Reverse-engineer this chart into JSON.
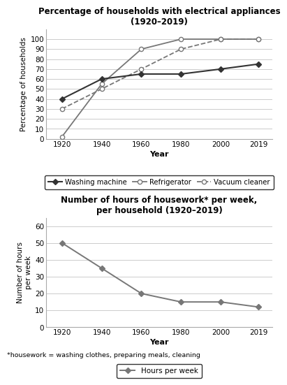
{
  "years": [
    1920,
    1940,
    1960,
    1980,
    2000,
    2019
  ],
  "washing_machine": [
    40,
    60,
    65,
    65,
    70,
    75
  ],
  "refrigerator": [
    2,
    55,
    90,
    100,
    100,
    100
  ],
  "vacuum_cleaner": [
    30,
    50,
    70,
    90,
    100,
    100
  ],
  "hours_per_week": [
    50,
    35,
    20,
    15,
    15,
    12
  ],
  "chart1_title": "Percentage of households with electrical appliances\n(1920–2019)",
  "chart1_ylabel": "Percentage of households",
  "chart1_xlabel": "Year",
  "chart1_ylim": [
    0,
    110
  ],
  "chart1_yticks": [
    0,
    10,
    20,
    30,
    40,
    50,
    60,
    70,
    80,
    90,
    100
  ],
  "chart2_title": "Number of hours of housework* per week,\nper household (1920–2019)",
  "chart2_ylabel": "Number of hours\nper week",
  "chart2_xlabel": "Year",
  "chart2_ylim": [
    0,
    65
  ],
  "chart2_yticks": [
    0,
    10,
    20,
    30,
    40,
    50,
    60
  ],
  "footnote": "*housework = washing clothes, preparing meals, cleaning",
  "dark_color": "#333333",
  "gray_color": "#777777",
  "grid_color": "#cccccc"
}
